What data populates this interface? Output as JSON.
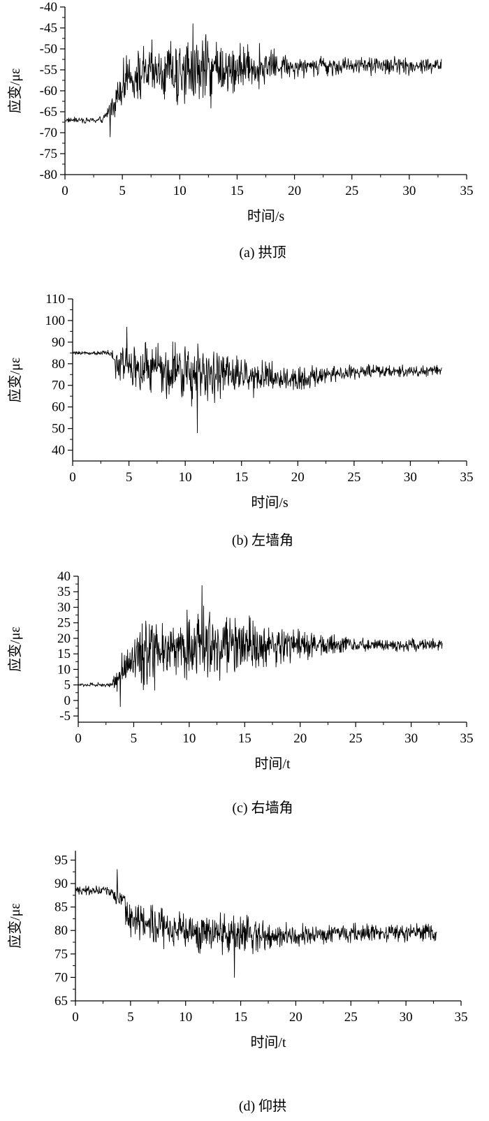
{
  "chart_data": [
    {
      "type": "line",
      "caption": "(a) 拱顶",
      "xlabel": "时间/s",
      "ylabel": "应变/με",
      "xlim": [
        0,
        35
      ],
      "ylim": [
        -80,
        -40
      ],
      "xticks": [
        0,
        5,
        10,
        15,
        20,
        25,
        30,
        35
      ],
      "yticks": [
        -80,
        -75,
        -70,
        -65,
        -60,
        -55,
        -50,
        -45,
        -40
      ],
      "xtick_labels": [
        "0",
        "5",
        "10",
        "15",
        "20",
        "25",
        "30",
        "35"
      ],
      "ytick_labels": [
        "-80",
        "-75",
        "-70",
        "-65",
        "-60",
        "-55",
        "-50",
        "-45",
        "-40"
      ],
      "grid": false,
      "x_end": 32.8,
      "signal_keypoints": [
        [
          0,
          -67
        ],
        [
          3.3,
          -67
        ],
        [
          4.2,
          -63
        ],
        [
          5,
          -58
        ],
        [
          7,
          -56
        ],
        [
          10,
          -56
        ],
        [
          12,
          -55
        ],
        [
          15,
          -55
        ],
        [
          17,
          -54
        ],
        [
          20,
          -54
        ],
        [
          25,
          -54
        ],
        [
          32.8,
          -54
        ]
      ],
      "amplitude_keypoints": [
        [
          0,
          0.6
        ],
        [
          3.3,
          0.9
        ],
        [
          4.2,
          3.5
        ],
        [
          5.5,
          6
        ],
        [
          11,
          9
        ],
        [
          14,
          8
        ],
        [
          17,
          5
        ],
        [
          20,
          3
        ],
        [
          24,
          2.5
        ],
        [
          32.8,
          2
        ]
      ],
      "extrema": {
        "max": -44,
        "min": -71
      }
    },
    {
      "type": "line",
      "caption": "(b) 左墙角",
      "xlabel": "时间/s",
      "ylabel": "应变/με",
      "xlim": [
        0,
        35
      ],
      "ylim": [
        35,
        110
      ],
      "xticks": [
        0,
        5,
        10,
        15,
        20,
        25,
        30,
        35
      ],
      "yticks": [
        40,
        50,
        60,
        70,
        80,
        90,
        100,
        110
      ],
      "xtick_labels": [
        "0",
        "5",
        "10",
        "15",
        "20",
        "25",
        "30",
        "35"
      ],
      "ytick_labels": [
        "40",
        "50",
        "60",
        "70",
        "80",
        "90",
        "100",
        "110"
      ],
      "grid": false,
      "x_end": 32.8,
      "signal_keypoints": [
        [
          0,
          85
        ],
        [
          3.2,
          85
        ],
        [
          4,
          80
        ],
        [
          6,
          77
        ],
        [
          10,
          75
        ],
        [
          14,
          74
        ],
        [
          17,
          74
        ],
        [
          20,
          73
        ],
        [
          25,
          76
        ],
        [
          32.8,
          77
        ]
      ],
      "amplitude_keypoints": [
        [
          0,
          0.8
        ],
        [
          3.2,
          1.2
        ],
        [
          4,
          9
        ],
        [
          6,
          13
        ],
        [
          11,
          15
        ],
        [
          14,
          12
        ],
        [
          17,
          8
        ],
        [
          20,
          6
        ],
        [
          25,
          3.5
        ],
        [
          32.8,
          2.5
        ]
      ],
      "extrema": {
        "max": 97,
        "min": 48
      }
    },
    {
      "type": "line",
      "caption": "(c) 右墙角",
      "xlabel": "时间/t",
      "ylabel": "应变/με",
      "xlim": [
        0,
        35
      ],
      "ylim": [
        -7,
        40
      ],
      "xticks": [
        0,
        5,
        10,
        15,
        20,
        25,
        30,
        35
      ],
      "yticks": [
        -5,
        0,
        5,
        10,
        15,
        20,
        25,
        30,
        35,
        40
      ],
      "xtick_labels": [
        "0",
        "5",
        "10",
        "15",
        "20",
        "25",
        "30",
        "35"
      ],
      "ytick_labels": [
        "-5",
        "0",
        "5",
        "10",
        "15",
        "20",
        "25",
        "30",
        "35",
        "40"
      ],
      "grid": false,
      "x_end": 32.8,
      "signal_keypoints": [
        [
          0,
          5
        ],
        [
          3,
          5
        ],
        [
          4,
          9
        ],
        [
          5,
          13
        ],
        [
          8,
          16
        ],
        [
          12,
          18
        ],
        [
          16,
          18
        ],
        [
          20,
          18
        ],
        [
          24,
          18
        ],
        [
          32.8,
          18
        ]
      ],
      "amplitude_keypoints": [
        [
          0,
          0.6
        ],
        [
          3,
          1
        ],
        [
          4,
          7
        ],
        [
          6,
          11
        ],
        [
          11,
          12
        ],
        [
          14,
          10
        ],
        [
          18,
          7
        ],
        [
          21,
          5
        ],
        [
          25,
          2.5
        ],
        [
          32.8,
          2
        ]
      ],
      "extrema": {
        "max": 37,
        "min": -2
      }
    },
    {
      "type": "line",
      "caption": "(d) 仰拱",
      "xlabel": "时间/t",
      "ylabel": "应变/με",
      "xlim": [
        0,
        35
      ],
      "ylim": [
        65,
        97
      ],
      "xticks": [
        0,
        5,
        10,
        15,
        20,
        25,
        30,
        35
      ],
      "yticks": [
        65,
        70,
        75,
        80,
        85,
        90,
        95
      ],
      "xtick_labels": [
        "0",
        "5",
        "10",
        "15",
        "20",
        "25",
        "30",
        "35"
      ],
      "ytick_labels": [
        "65",
        "70",
        "75",
        "80",
        "85",
        "90",
        "95"
      ],
      "grid": false,
      "x_end": 32.8,
      "signal_keypoints": [
        [
          0,
          88.5
        ],
        [
          3,
          88.5
        ],
        [
          4,
          87
        ],
        [
          5,
          83
        ],
        [
          7,
          81
        ],
        [
          10,
          80
        ],
        [
          14,
          79
        ],
        [
          20,
          79
        ],
        [
          25,
          79.5
        ],
        [
          32.8,
          79.5
        ]
      ],
      "amplitude_keypoints": [
        [
          0,
          0.9
        ],
        [
          3,
          1.1
        ],
        [
          4,
          2.5
        ],
        [
          5,
          4
        ],
        [
          10,
          5
        ],
        [
          15,
          4.5
        ],
        [
          18,
          3
        ],
        [
          22,
          2
        ],
        [
          32.8,
          2
        ]
      ],
      "extrema": {
        "max": 93,
        "min": 70
      }
    }
  ]
}
